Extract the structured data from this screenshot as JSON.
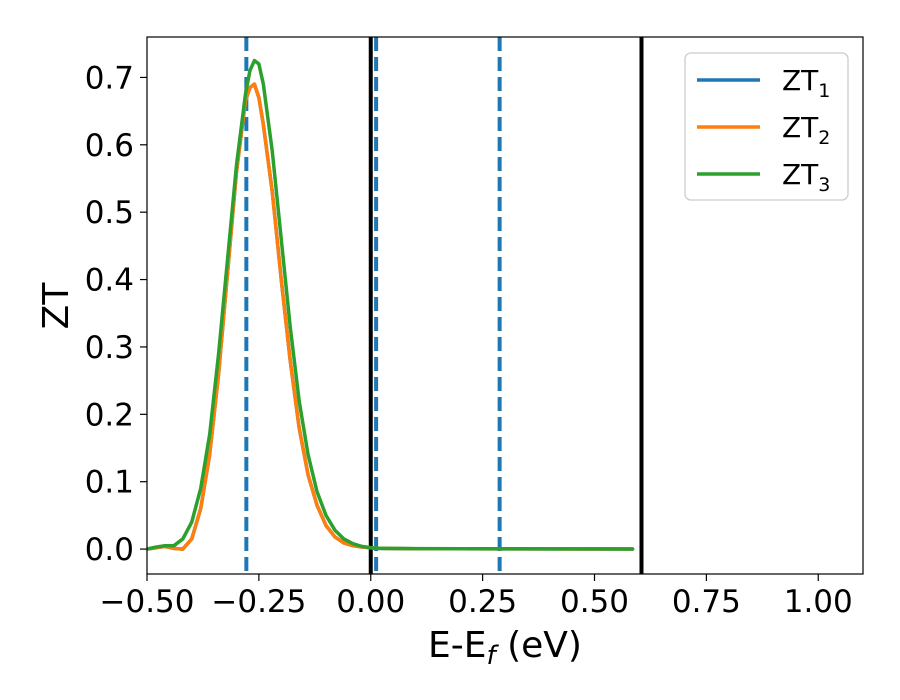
{
  "chart_data": {
    "type": "line",
    "xlabel_main": "E-E",
    "xlabel_sub": "f",
    "xlabel_unit": " (eV)",
    "ylabel": "ZT",
    "xlim": [
      -0.5,
      1.1
    ],
    "ylim": [
      -0.037,
      0.76
    ],
    "grid": false,
    "legend_placement": "top-right",
    "x_ticks": [
      {
        "value": -0.5,
        "label": "−0.50"
      },
      {
        "value": -0.25,
        "label": "−0.25"
      },
      {
        "value": 0.0,
        "label": "0.00"
      },
      {
        "value": 0.25,
        "label": "0.25"
      },
      {
        "value": 0.5,
        "label": "0.50"
      },
      {
        "value": 0.75,
        "label": "0.75"
      },
      {
        "value": 1.0,
        "label": "1.00"
      }
    ],
    "y_ticks": [
      {
        "value": 0.0,
        "label": "0.0"
      },
      {
        "value": 0.1,
        "label": "0.1"
      },
      {
        "value": 0.2,
        "label": "0.2"
      },
      {
        "value": 0.3,
        "label": "0.3"
      },
      {
        "value": 0.4,
        "label": "0.4"
      },
      {
        "value": 0.5,
        "label": "0.5"
      },
      {
        "value": 0.6,
        "label": "0.6"
      },
      {
        "value": 0.7,
        "label": "0.7"
      }
    ],
    "vlines": [
      {
        "x": -0.278,
        "style": "dashed",
        "color": "#1f77b4"
      },
      {
        "x": 0.012,
        "style": "dashed",
        "color": "#1f77b4"
      },
      {
        "x": 0.288,
        "style": "dashed",
        "color": "#1f77b4"
      },
      {
        "x": 0.0,
        "style": "solid",
        "color": "#000000"
      },
      {
        "x": 0.605,
        "style": "solid",
        "color": "#000000"
      }
    ],
    "series": [
      {
        "name": "ZT",
        "subscript": "1",
        "color": "#1f77b4",
        "x": [
          -0.5,
          -0.48,
          -0.46,
          -0.44,
          -0.42,
          -0.4,
          -0.38,
          -0.36,
          -0.34,
          -0.32,
          -0.3,
          -0.28,
          -0.27,
          -0.26,
          -0.25,
          -0.24,
          -0.22,
          -0.2,
          -0.18,
          -0.16,
          -0.14,
          -0.12,
          -0.1,
          -0.08,
          -0.06,
          -0.04,
          -0.02,
          0.0,
          0.02,
          0.1,
          0.2,
          0.3,
          0.4,
          0.5,
          0.585
        ],
        "y": [
          0.0,
          0.002,
          0.004,
          0.001,
          0.0,
          0.015,
          0.06,
          0.14,
          0.26,
          0.41,
          0.56,
          0.665,
          0.685,
          0.69,
          0.67,
          0.63,
          0.53,
          0.4,
          0.28,
          0.18,
          0.11,
          0.065,
          0.035,
          0.018,
          0.009,
          0.005,
          0.003,
          0.002,
          0.001,
          0.0005,
          0.0004,
          0.0003,
          0.0003,
          0.0002,
          0.0002
        ]
      },
      {
        "name": "ZT",
        "subscript": "2",
        "color": "#ff7f0e",
        "x": [
          -0.5,
          -0.48,
          -0.46,
          -0.44,
          -0.42,
          -0.4,
          -0.38,
          -0.36,
          -0.34,
          -0.32,
          -0.3,
          -0.28,
          -0.27,
          -0.26,
          -0.25,
          -0.24,
          -0.22,
          -0.2,
          -0.18,
          -0.16,
          -0.14,
          -0.12,
          -0.1,
          -0.08,
          -0.06,
          -0.04,
          -0.02,
          0.0,
          0.02,
          0.1,
          0.2,
          0.3,
          0.4,
          0.5,
          0.585
        ],
        "y": [
          0.0,
          0.002,
          0.004,
          0.001,
          0.0,
          0.015,
          0.06,
          0.14,
          0.26,
          0.41,
          0.56,
          0.665,
          0.685,
          0.69,
          0.67,
          0.63,
          0.53,
          0.4,
          0.28,
          0.18,
          0.11,
          0.065,
          0.035,
          0.018,
          0.009,
          0.005,
          0.003,
          0.002,
          0.001,
          0.0005,
          0.0004,
          0.0003,
          0.0003,
          0.0002,
          0.0002
        ]
      },
      {
        "name": "ZT",
        "subscript": "3",
        "color": "#2ca02c",
        "x": [
          -0.5,
          -0.48,
          -0.46,
          -0.44,
          -0.42,
          -0.4,
          -0.38,
          -0.36,
          -0.34,
          -0.32,
          -0.3,
          -0.28,
          -0.27,
          -0.26,
          -0.25,
          -0.24,
          -0.22,
          -0.2,
          -0.18,
          -0.16,
          -0.14,
          -0.12,
          -0.1,
          -0.08,
          -0.06,
          -0.04,
          -0.02,
          0.0,
          0.02,
          0.1,
          0.2,
          0.3,
          0.4,
          0.5,
          0.585
        ],
        "y": [
          0.0,
          0.003,
          0.005,
          0.005,
          0.015,
          0.04,
          0.09,
          0.17,
          0.29,
          0.43,
          0.57,
          0.675,
          0.71,
          0.725,
          0.72,
          0.69,
          0.59,
          0.46,
          0.33,
          0.22,
          0.14,
          0.085,
          0.05,
          0.028,
          0.015,
          0.008,
          0.004,
          0.002,
          0.001,
          0.0006,
          0.0005,
          0.0004,
          0.0003,
          0.0003,
          0.0002
        ]
      }
    ]
  }
}
